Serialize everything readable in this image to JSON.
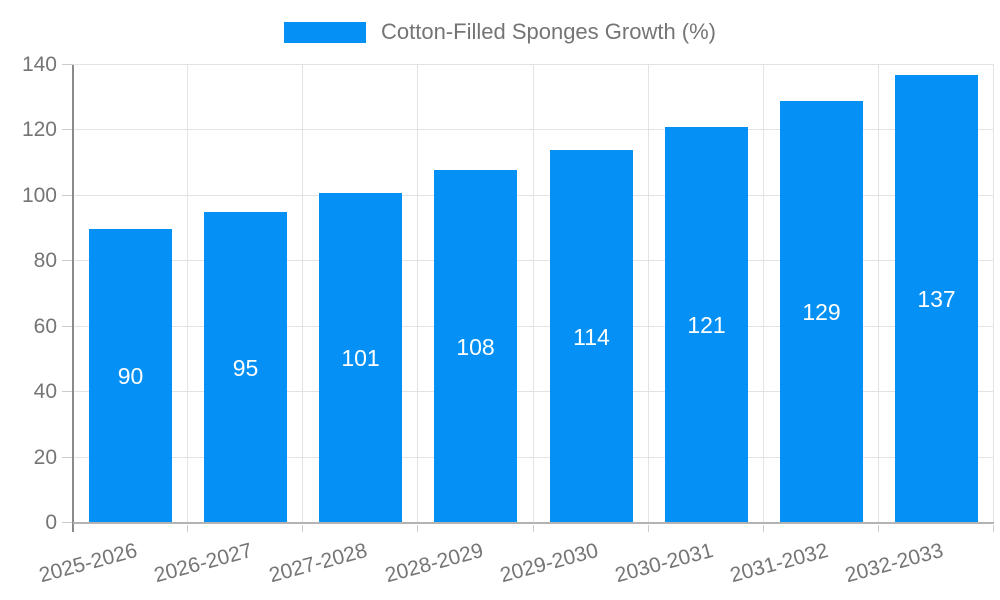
{
  "chart_data": {
    "type": "bar",
    "title": "Cotton-Filled Sponges Growth (%)",
    "categories": [
      "2025-2026",
      "2026-2027",
      "2027-2028",
      "2028-2029",
      "2029-2030",
      "2030-2031",
      "2031-2032",
      "2032-2033"
    ],
    "series": [
      {
        "name": "Cotton-Filled Sponges Growth (%)",
        "values": [
          90,
          95,
          101,
          108,
          114,
          121,
          129,
          137
        ]
      }
    ],
    "xlabel": "",
    "ylabel": "",
    "ylim": [
      0,
      140
    ],
    "yticks": [
      0,
      20,
      40,
      60,
      80,
      100,
      120,
      140
    ],
    "grid": true,
    "legend_position": "top-center",
    "value_labels": "inside-center",
    "colors": {
      "bar": "#0490F5",
      "axis_text": "#757575",
      "gridline": "#E3E3E3",
      "y_axis_line": "#8A8A8A",
      "x_baseline": "#B3B3B3",
      "tick": "#CCCCCC",
      "value_label": "#FFFFFF"
    }
  }
}
